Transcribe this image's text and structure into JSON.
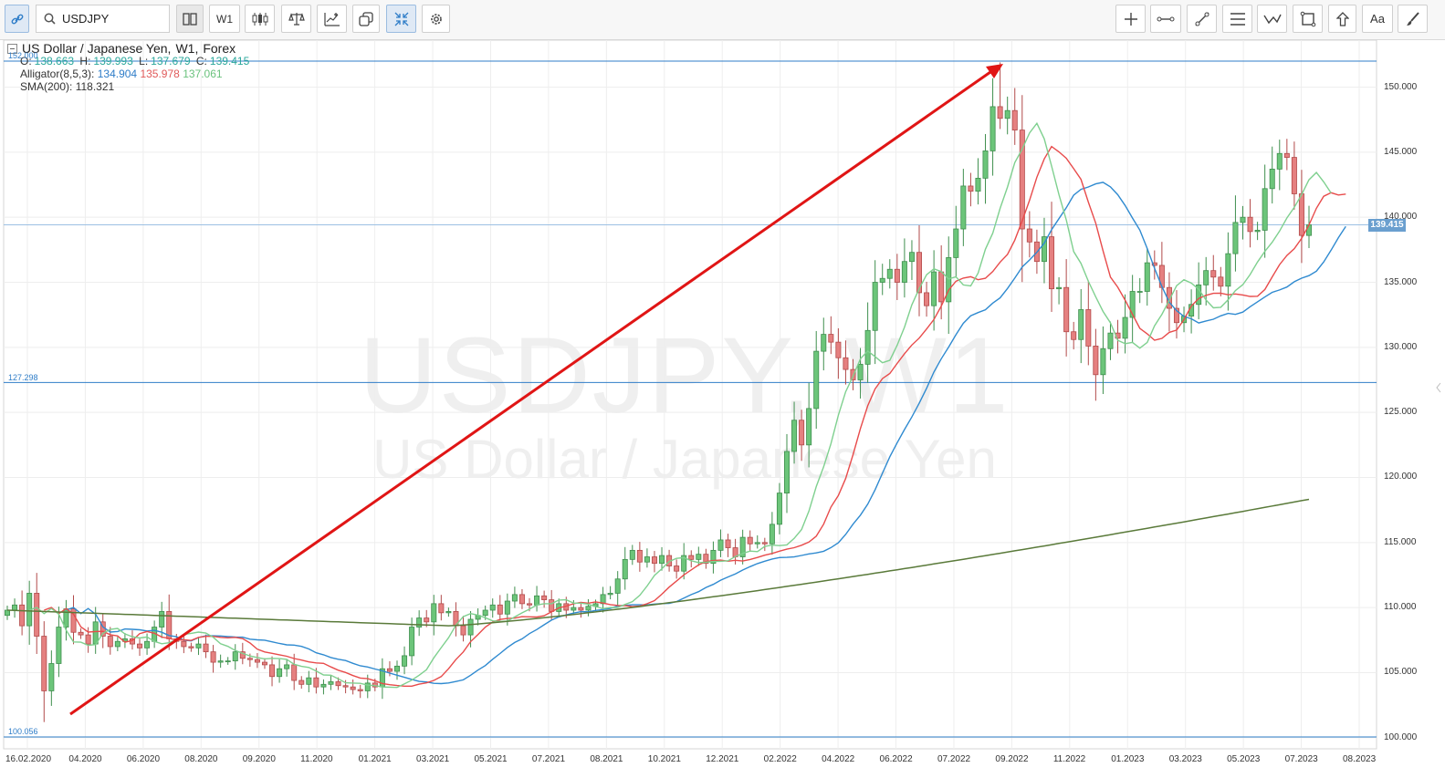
{
  "toolbar": {
    "symbol": "USDJPY",
    "timeframe": "W1",
    "left_icons": [
      "link-icon",
      "search-icon",
      "bars-icon",
      "candles-icon",
      "balance-icon",
      "indicator-icon",
      "shapes-icon",
      "compress-icon",
      "gear-icon"
    ],
    "right_icons": [
      "crosshair-icon",
      "horizontal-line-icon",
      "trend-line-icon",
      "fib-lines-icon",
      "wave-icon",
      "rectangle-icon",
      "arrow-up-icon",
      "text-icon",
      "brush-icon"
    ],
    "text_tool_label": "Aa"
  },
  "legend": {
    "title": "US Dollar / Japanese Yen,",
    "timeframe": "W1,",
    "market": "Forex",
    "o_label": "O:",
    "o": "138.663",
    "h_label": "H:",
    "h": "139.993",
    "l_label": "L:",
    "l": "137.679",
    "c_label": "C:",
    "c": "139.415",
    "alligator_label": "Alligator(8,5,3):",
    "alligator_values": [
      "134.904",
      "135.978",
      "137.061"
    ],
    "sma_label": "SMA(200):",
    "sma_value": "118.321"
  },
  "watermark": {
    "symbol": "USDJPY, W1",
    "name": "US Dollar / Japanese Yen"
  },
  "levels": {
    "top": "152.000",
    "middle": "127.298",
    "bottom": "100.056"
  },
  "current_price": "139.415",
  "colors": {
    "bull": "#6cc57a",
    "bear": "#e58080",
    "jaw": "#2f8ad0",
    "teeth": "#e84b4b",
    "lips": "#7fd08f",
    "sma": "#5a7a3a",
    "arrow": "#e01515",
    "level": "#2f7dc8"
  },
  "chart_data": {
    "type": "candlestick",
    "ylim": [
      99.5,
      152.5
    ],
    "y_ticks": [
      "150.000",
      "145.000",
      "140.000",
      "135.000",
      "130.000",
      "125.000",
      "120.000",
      "115.000",
      "110.000",
      "105.000",
      "100.000"
    ],
    "x_ticks": [
      "16.02.2020",
      "04.2020",
      "06.2020",
      "08.2020",
      "09.2020",
      "11.2020",
      "01.2021",
      "03.2021",
      "05.2021",
      "07.2021",
      "08.2021",
      "10.2021",
      "12.2021",
      "02.2022",
      "04.2022",
      "06.2022",
      "07.2022",
      "09.2022",
      "11.2022",
      "01.2023",
      "03.2023",
      "05.2023",
      "07.2023",
      "08.2023"
    ],
    "close_series": [
      109.8,
      110.2,
      108.6,
      111.1,
      107.8,
      103.6,
      105.7,
      108.5,
      109.9,
      108.1,
      107.9,
      107.2,
      108.9,
      107.8,
      107.0,
      107.4,
      107.6,
      107.2,
      106.9,
      107.4,
      108.5,
      109.7,
      107.6,
      107.4,
      107.0,
      106.9,
      107.2,
      106.6,
      105.8,
      105.9,
      105.9,
      106.6,
      106.1,
      106.0,
      105.8,
      105.6,
      104.7,
      105.3,
      105.6,
      104.4,
      104.1,
      104.6,
      103.9,
      104.1,
      104.3,
      104.0,
      103.9,
      103.7,
      103.6,
      104.2,
      103.9,
      105.3,
      105.1,
      105.5,
      106.3,
      108.5,
      109.2,
      108.9,
      110.3,
      109.6,
      109.7,
      108.6,
      107.9,
      109.1,
      109.4,
      109.8,
      110.2,
      109.5,
      110.5,
      111.0,
      110.3,
      110.2,
      110.9,
      110.6,
      109.7,
      110.3,
      109.8,
      110.0,
      109.8,
      110.1,
      110.3,
      111.0,
      111.1,
      112.2,
      113.7,
      114.4,
      113.5,
      113.9,
      113.4,
      114.0,
      113.2,
      112.8,
      114.0,
      113.7,
      114.1,
      113.4,
      114.4,
      115.2,
      114.6,
      113.9,
      115.4,
      114.9,
      115.0,
      114.9,
      116.4,
      118.8,
      122.0,
      124.4,
      122.5,
      125.3,
      129.7,
      131.0,
      130.4,
      129.2,
      128.3,
      127.5,
      128.7,
      131.3,
      135.0,
      135.3,
      136.0,
      135.0,
      136.6,
      137.3,
      134.2,
      133.2,
      135.8,
      133.5,
      136.9,
      139.1,
      142.4,
      142.0,
      143.0,
      145.1,
      148.5,
      147.6,
      148.2,
      146.7,
      139.1,
      138.1,
      136.6,
      138.5,
      134.5,
      134.6,
      131.2,
      130.6,
      132.9,
      130.1,
      127.9,
      129.9,
      131.1,
      130.7,
      132.3,
      134.3,
      134.3,
      136.5,
      136.3,
      134.6,
      133.0,
      131.9,
      132.4,
      133.3,
      134.8,
      135.9,
      135.4,
      134.7,
      137.2,
      139.6,
      140.0,
      138.9,
      139.0,
      142.2,
      143.7,
      144.9,
      144.6,
      141.8,
      138.6,
      139.415
    ]
  }
}
